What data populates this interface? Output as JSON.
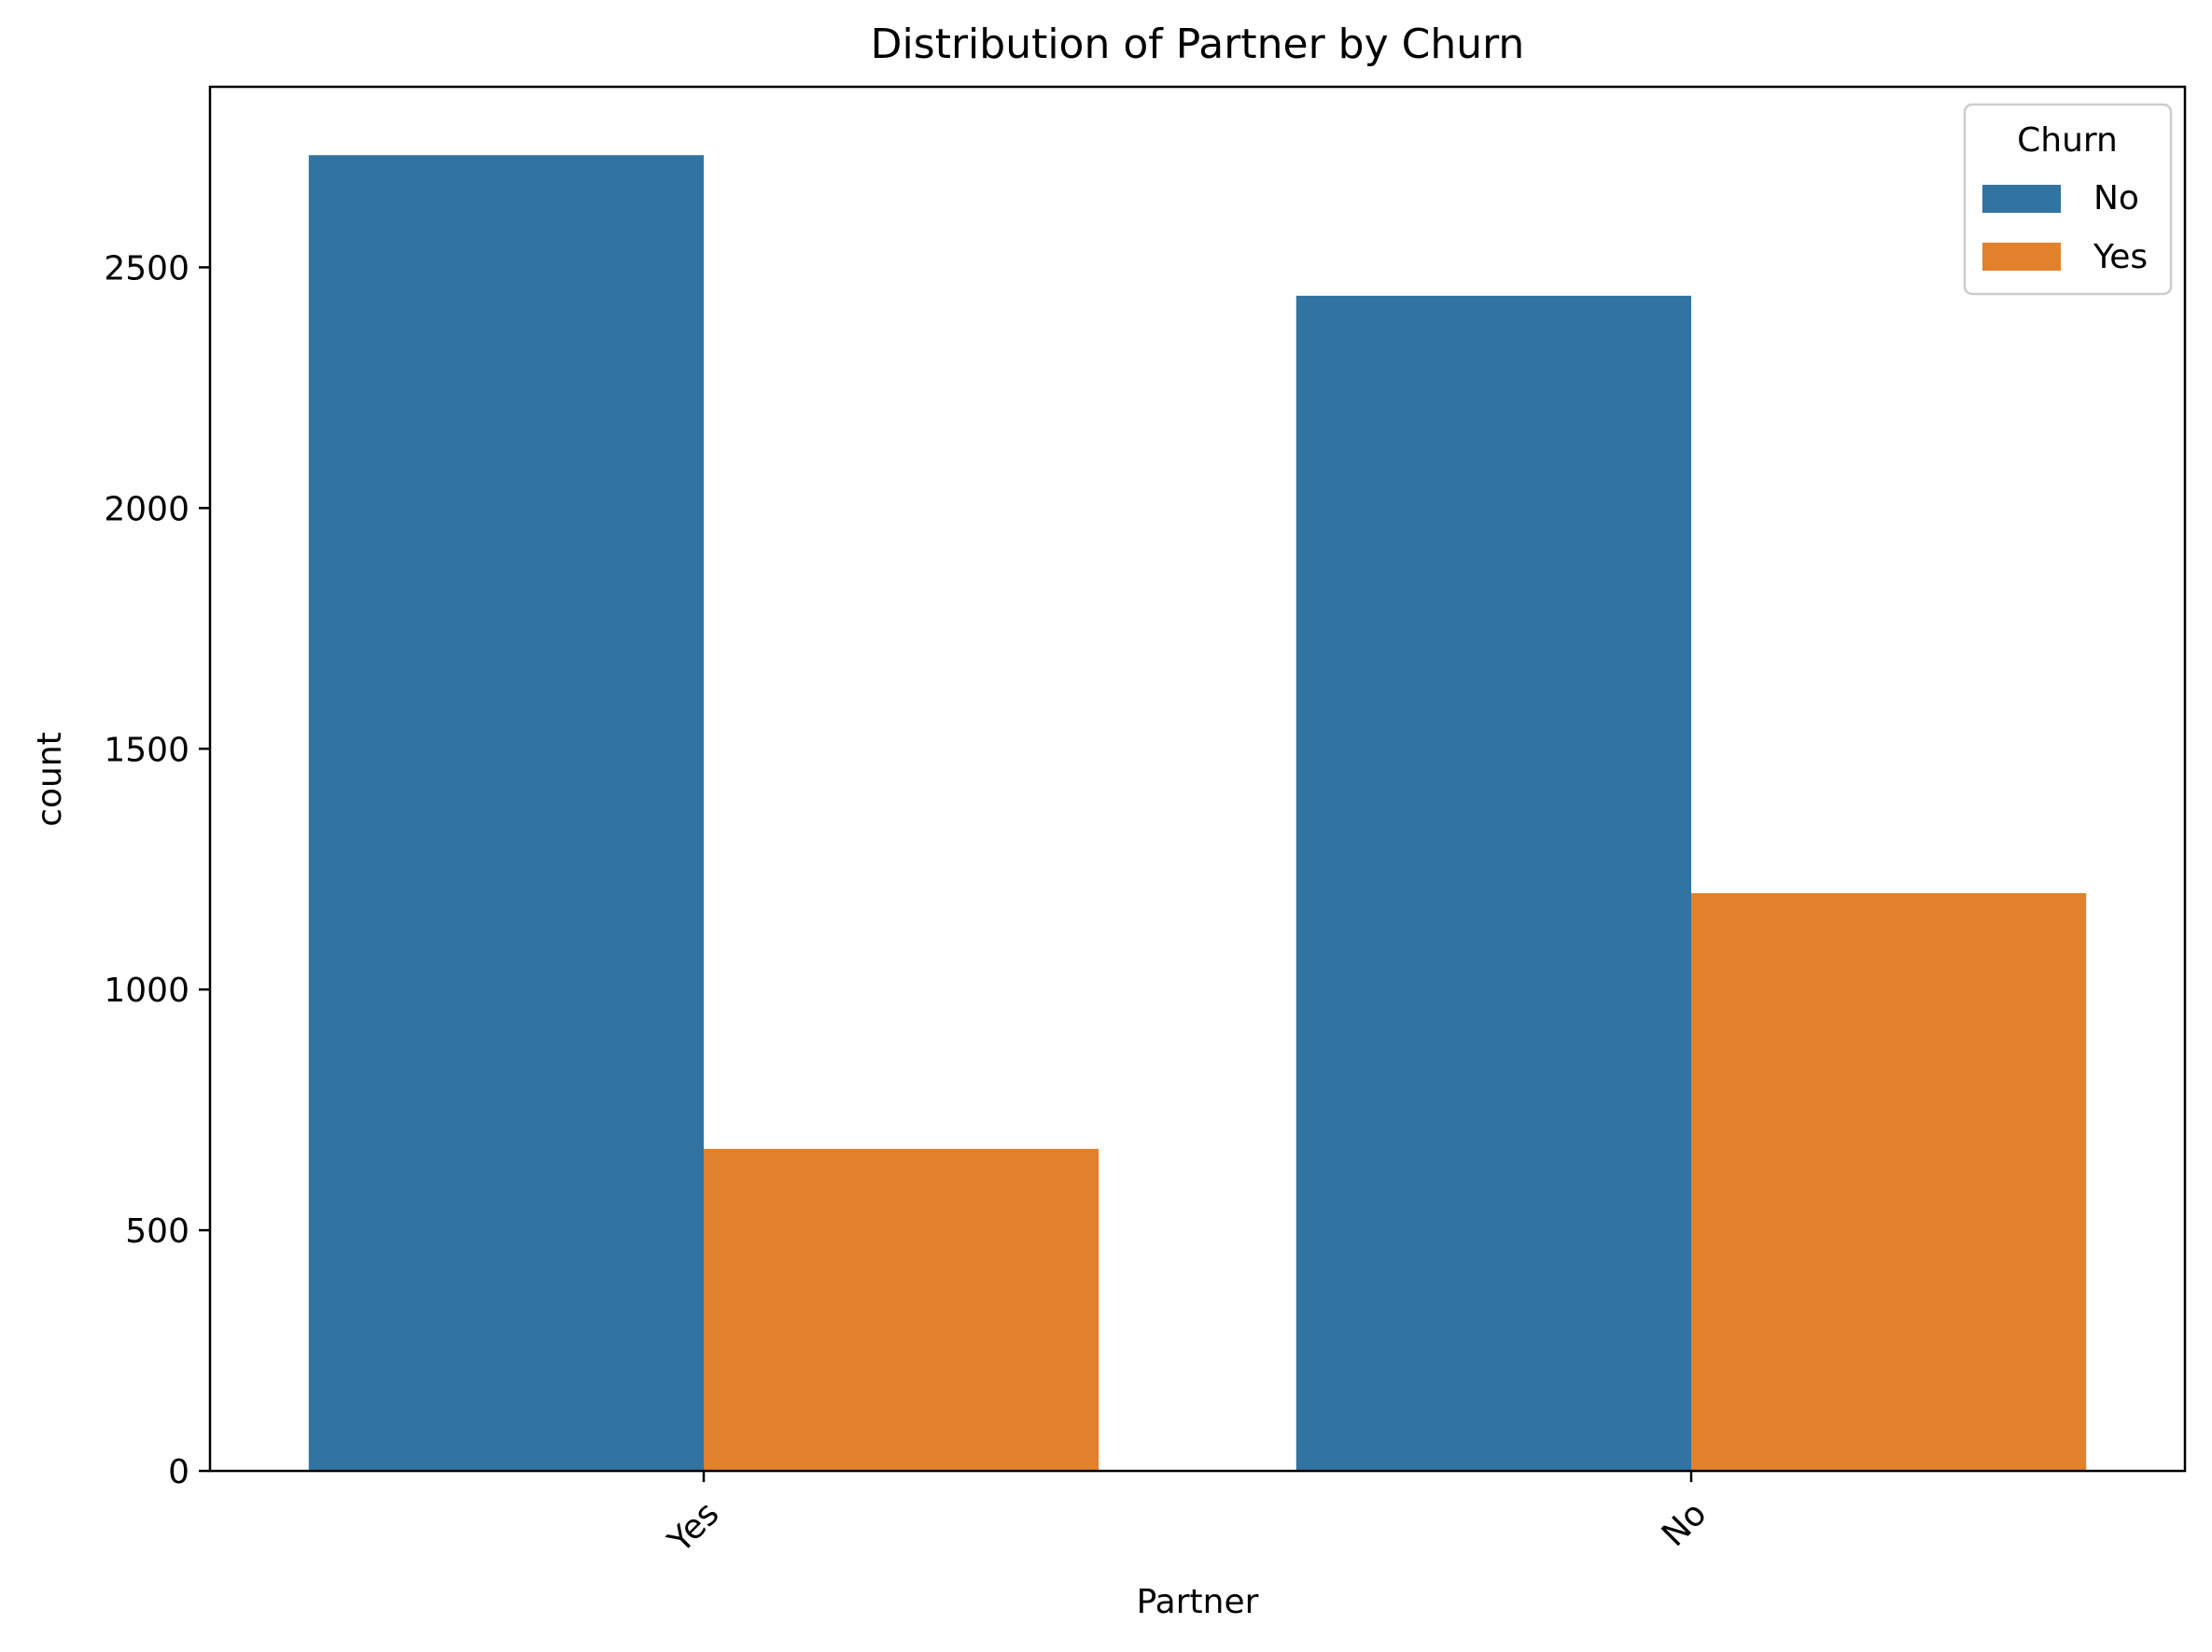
{
  "chart_data": {
    "type": "bar",
    "title": "Distribution of Partner by Churn",
    "xlabel": "Partner",
    "ylabel": "count",
    "categories": [
      "Yes",
      "No"
    ],
    "series": [
      {
        "name": "No",
        "color": "#3274a1",
        "values": [
          2733,
          2441
        ]
      },
      {
        "name": "Yes",
        "color": "#e1812c",
        "values": [
          669,
          1200
        ]
      }
    ],
    "ylim": [
      0,
      2875
    ],
    "yticks": [
      0,
      500,
      1000,
      1500,
      2000,
      2500
    ],
    "grid": false,
    "legend": {
      "title": "Churn",
      "placement": "top-right"
    }
  }
}
